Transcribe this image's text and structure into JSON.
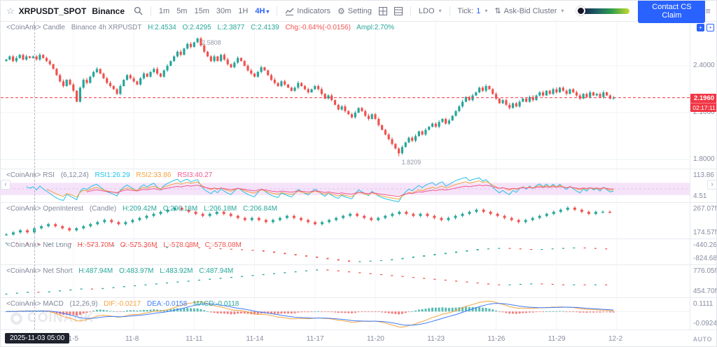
{
  "toolbar": {
    "symbol": "XRPUSDT_SPOT",
    "exchange": "Binance",
    "timeframes": [
      "1m",
      "5m",
      "15m",
      "30m",
      "1H",
      "4H"
    ],
    "active_timeframe": "4H",
    "indicators_label": "Indicators",
    "setting_label": "Setting",
    "ldo_label": "LDO",
    "tick_label": "Tick:",
    "tick_value": "1",
    "askbid_label": "Ask-Bid Cluster",
    "contact_button": "Contact CS Claim"
  },
  "icons": {
    "star": "☆",
    "gear": "⚙",
    "caret": "▾",
    "updown": "⇅",
    "menu": "≡",
    "chevron_left": "‹",
    "chevron_right": "›",
    "expand": "+",
    "shot": "•",
    "search": "magnifier-svg",
    "indicators": "line-chart-svg",
    "grid_quad": "grid-svg",
    "grid_rows": "rows-svg"
  },
  "main": {
    "legend": {
      "name": "<CoinAnk> Candle",
      "info": "Binance 4h XRPUSDT",
      "h": "H:2.4534",
      "o": "O:2.4295",
      "l": "L:2.3877",
      "c": "C:2.4139",
      "chg": "Chg:-0.64%(-0.0156)",
      "ampl": "Ampl:2.70%"
    },
    "axis_labels": [
      "2.4000",
      "2.1000",
      "1.8000"
    ],
    "current_price": "2.1960",
    "countdown": "02:17:11"
  },
  "annotations": {
    "high": "2.5808",
    "low": "1.8209"
  },
  "rsi": {
    "legend": {
      "name": "<CoinAnk> RSI",
      "params": "(6,12,24)",
      "rsi1": "RSI1:26.29",
      "rsi2": "RSI2:33.86",
      "rsi3": "RSI3:40.27"
    },
    "axis": {
      "top": "113.86",
      "bottom": "4.51"
    }
  },
  "oi": {
    "legend": {
      "name": "<CoinAnk> OpenInterest",
      "params": "(Candle)",
      "h": "H:209.42M",
      "o": "O:206.18M",
      "l": "L:206.18M",
      "c": "C:206.84M"
    },
    "axis": {
      "top": "267.07M",
      "bottom": "174.57M"
    }
  },
  "netlong": {
    "legend": {
      "name": "<CoinAnk> Net Long",
      "h": "H:-573.70M",
      "o": "O:-575.36M",
      "l": "L:-578.08M",
      "c": "C:-578.08M"
    },
    "axis": {
      "top": "-440.26M",
      "bottom": "-824.68M"
    }
  },
  "netshort": {
    "legend": {
      "name": "<CoinAnk> Net Short",
      "h": "H:487.94M",
      "o": "O:483.97M",
      "l": "L:483.92M",
      "c": "C:487.94M"
    },
    "axis": {
      "top": "776.05M",
      "bottom": "454.70M"
    }
  },
  "macd": {
    "legend": {
      "name": "<CoinAnk> MACD",
      "params": "(12,26,9)",
      "dif": "DIF:-0.0217",
      "dea": "DEA:-0.0158",
      "macd": "MACD:-0.0118"
    },
    "axis": {
      "top": "0.1111",
      "bottom": "-0.0924"
    }
  },
  "time_axis": {
    "crosshair_time": "2025-11-03 05:00",
    "labels": [
      "11-5",
      "11-8",
      "11-11",
      "11-14",
      "11-17",
      "11-20",
      "11-23",
      "11-26",
      "11-29",
      "12-2"
    ],
    "auto_label": "AUTO"
  },
  "watermark": "COINANK",
  "palette": {
    "up": "#26a69a",
    "down": "#ef5350",
    "accent": "#2962ff",
    "price_badge": "#f23645",
    "rsi1": "#22c3e6",
    "rsi2": "#f2a33c",
    "rsi3": "#ee5a8f",
    "dif": "#f2a33c",
    "dea": "#3e7bfa",
    "band": "#f5e3fa"
  },
  "chart_data": {
    "type": "candlestick",
    "symbol": "XRPUSDT",
    "exchange": "Binance",
    "interval": "4h",
    "first_open": 2.43,
    "closes": [
      2.44,
      2.46,
      2.43,
      2.45,
      2.47,
      2.44,
      2.46,
      2.45,
      2.46,
      2.44,
      2.47,
      2.45,
      2.43,
      2.41,
      2.38,
      2.34,
      2.3,
      2.27,
      2.31,
      2.28,
      2.24,
      2.17,
      2.26,
      2.31,
      2.29,
      2.33,
      2.36,
      2.38,
      2.35,
      2.32,
      2.29,
      2.27,
      2.25,
      2.22,
      2.27,
      2.31,
      2.34,
      2.32,
      2.3,
      2.28,
      2.32,
      2.35,
      2.33,
      2.36,
      2.38,
      2.35,
      2.33,
      2.37,
      2.4,
      2.43,
      2.46,
      2.49,
      2.47,
      2.51,
      2.54,
      2.52,
      2.55,
      2.575,
      2.53,
      2.49,
      2.46,
      2.43,
      2.46,
      2.43,
      2.47,
      2.44,
      2.41,
      2.39,
      2.42,
      2.45,
      2.43,
      2.4,
      2.37,
      2.35,
      2.33,
      2.36,
      2.39,
      2.37,
      2.34,
      2.31,
      2.29,
      2.27,
      2.3,
      2.28,
      2.26,
      2.24,
      2.26,
      2.29,
      2.27,
      2.25,
      2.23,
      2.25,
      2.27,
      2.25,
      2.22,
      2.19,
      2.21,
      2.18,
      2.15,
      2.12,
      2.14,
      2.11,
      2.09,
      2.07,
      2.1,
      2.13,
      2.11,
      2.08,
      2.06,
      2.09,
      2.06,
      2.02,
      1.99,
      1.96,
      1.93,
      1.9,
      1.87,
      1.84,
      1.88,
      1.91,
      1.94,
      1.92,
      1.95,
      1.98,
      1.96,
      1.99,
      2.01,
      2.03,
      2.01,
      2.04,
      2.06,
      2.03,
      2.05,
      2.08,
      2.11,
      2.14,
      2.17,
      2.2,
      2.18,
      2.21,
      2.23,
      2.26,
      2.24,
      2.27,
      2.25,
      2.22,
      2.19,
      2.16,
      2.18,
      2.15,
      2.13,
      2.16,
      2.14,
      2.17,
      2.19,
      2.17,
      2.2,
      2.18,
      2.21,
      2.23,
      2.21,
      2.24,
      2.22,
      2.25,
      2.23,
      2.26,
      2.24,
      2.22,
      2.25,
      2.23,
      2.21,
      2.19,
      2.22,
      2.2,
      2.23,
      2.21,
      2.22,
      2.2,
      2.23,
      2.21,
      2.19,
      2.196
    ],
    "overrides": {
      "57": {
        "high": 2.5808
      },
      "117": {
        "low": 1.8209
      }
    },
    "price_axis": {
      "min": 1.742,
      "max": 2.682,
      "gridlines": [
        2.4,
        2.1,
        1.8
      ]
    },
    "current_price": 2.196,
    "rsi_scale": [
      4.51,
      113.86
    ],
    "rsi_periods": [
      6,
      12,
      24
    ],
    "macd_params": [
      12,
      26,
      9
    ],
    "open_interest_m": [
      196,
      197,
      198,
      197,
      199,
      200,
      201,
      200,
      199,
      198,
      199,
      200,
      201,
      202,
      203,
      202,
      201,
      202,
      203,
      204,
      205,
      206,
      207,
      208,
      209,
      208,
      207,
      206,
      205,
      206,
      207,
      206,
      205,
      204,
      203,
      204,
      203,
      202,
      203,
      204,
      205,
      204,
      203,
      202,
      201,
      202,
      203,
      204,
      205,
      206,
      205,
      204,
      203,
      204,
      205,
      206,
      207,
      206,
      205,
      206,
      205,
      204,
      203,
      204,
      205,
      206,
      207,
      208,
      207,
      206,
      205,
      204,
      203,
      202,
      203,
      204,
      205,
      206,
      207,
      208,
      209,
      208,
      207,
      206,
      207,
      207,
      206.84
    ],
    "net_long_m": [
      -555,
      -558,
      -560,
      -562,
      -560,
      -558,
      -561,
      -563,
      -565,
      -567,
      -565,
      -568,
      -570,
      -572,
      -574,
      -572,
      -570,
      -573,
      -575,
      -577,
      -579,
      -581,
      -583,
      -585,
      -590,
      -595,
      -600,
      -605,
      -610,
      -615,
      -620,
      -625,
      -630,
      -628,
      -626,
      -624,
      -620,
      -615,
      -610,
      -605,
      -600,
      -595,
      -590,
      -585,
      -580,
      -578,
      -576,
      -578,
      -580,
      -582,
      -580,
      -578,
      -576,
      -574,
      -576,
      -578,
      -578.08
    ],
    "net_short_m": [
      468,
      470,
      472,
      471,
      473,
      475,
      477,
      479,
      478,
      480,
      482,
      484,
      486,
      488,
      490,
      492,
      494,
      496,
      498,
      500,
      502,
      504,
      506,
      508,
      510,
      512,
      514,
      516,
      518,
      520,
      518,
      516,
      514,
      512,
      510,
      508,
      506,
      504,
      502,
      500,
      498,
      496,
      494,
      492,
      490,
      488,
      487,
      488,
      489,
      490,
      489,
      488,
      487,
      488,
      487,
      488,
      487.94
    ]
  }
}
